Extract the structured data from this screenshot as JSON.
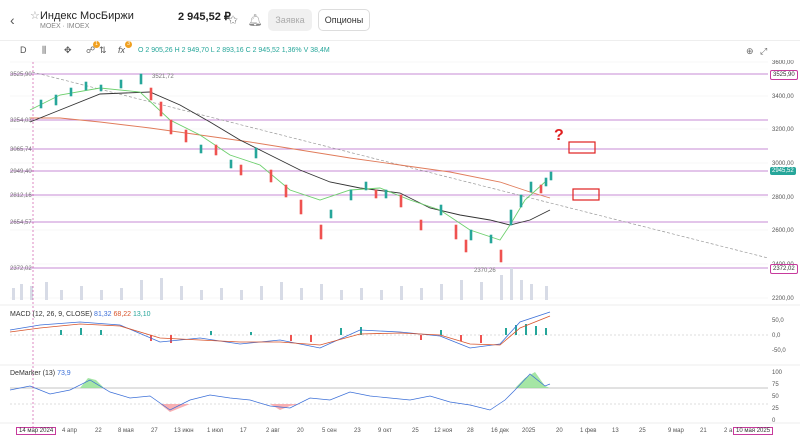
{
  "header": {
    "back_icon": "chevron-left-icon",
    "title": "Индекс МосБиржи",
    "subtitle": "MOEX · IMOEX",
    "price": "2 945,52 ₽",
    "order_button": "Заявка",
    "options_button": "Опционы"
  },
  "toolbar": {
    "interval": "D",
    "indicators_badge": "1",
    "fx_badge": "3"
  },
  "ohlc": {
    "o": "О 2 905,26",
    "h": "Н 2 949,70",
    "l": "L 2 893,16",
    "c": "С 2 945,52",
    "change": "1,36%",
    "volume": "V 38,4M"
  },
  "price_axis": [
    "3600,00",
    "3400,00",
    "3200,00",
    "3000,00",
    "2800,00",
    "2600,00",
    "2400,00",
    "2200,00"
  ],
  "price_tags": {
    "top": "3525,90",
    "current": "2945,52",
    "bottom": "2372,02"
  },
  "levels": {
    "l1": "3525,90",
    "l2": "3254,03",
    "l3": "3065,74",
    "l4": "2949,40",
    "l5": "2812,16",
    "l6": "2654,57",
    "l7": "2372,02"
  },
  "annotations": {
    "high": "3521,72",
    "low": "2370,26",
    "question": "?"
  },
  "macd": {
    "title": "MACD (12, 26, 9, CLOSE)",
    "v1": "81,32",
    "v2": "68,22",
    "v3": "13,10",
    "axis": [
      "50,0",
      "0,0",
      "-50,0"
    ]
  },
  "demarker": {
    "title": "DeMarker (13)",
    "v": "73,9",
    "axis": [
      "100",
      "75",
      "50",
      "25",
      "0"
    ]
  },
  "dates": [
    "4 апр",
    "22",
    "8 мая",
    "27",
    "13 июн",
    "1 июл",
    "17",
    "2 авг",
    "20",
    "5 сен",
    "23",
    "9 окт",
    "25",
    "12 ноя",
    "28",
    "16 дек",
    "2025",
    "20",
    "1 фев",
    "13",
    "25",
    "9 мар",
    "21",
    "2 а"
  ],
  "date_start": "14 мар 2024",
  "date_end": "10 мая 2025"
}
